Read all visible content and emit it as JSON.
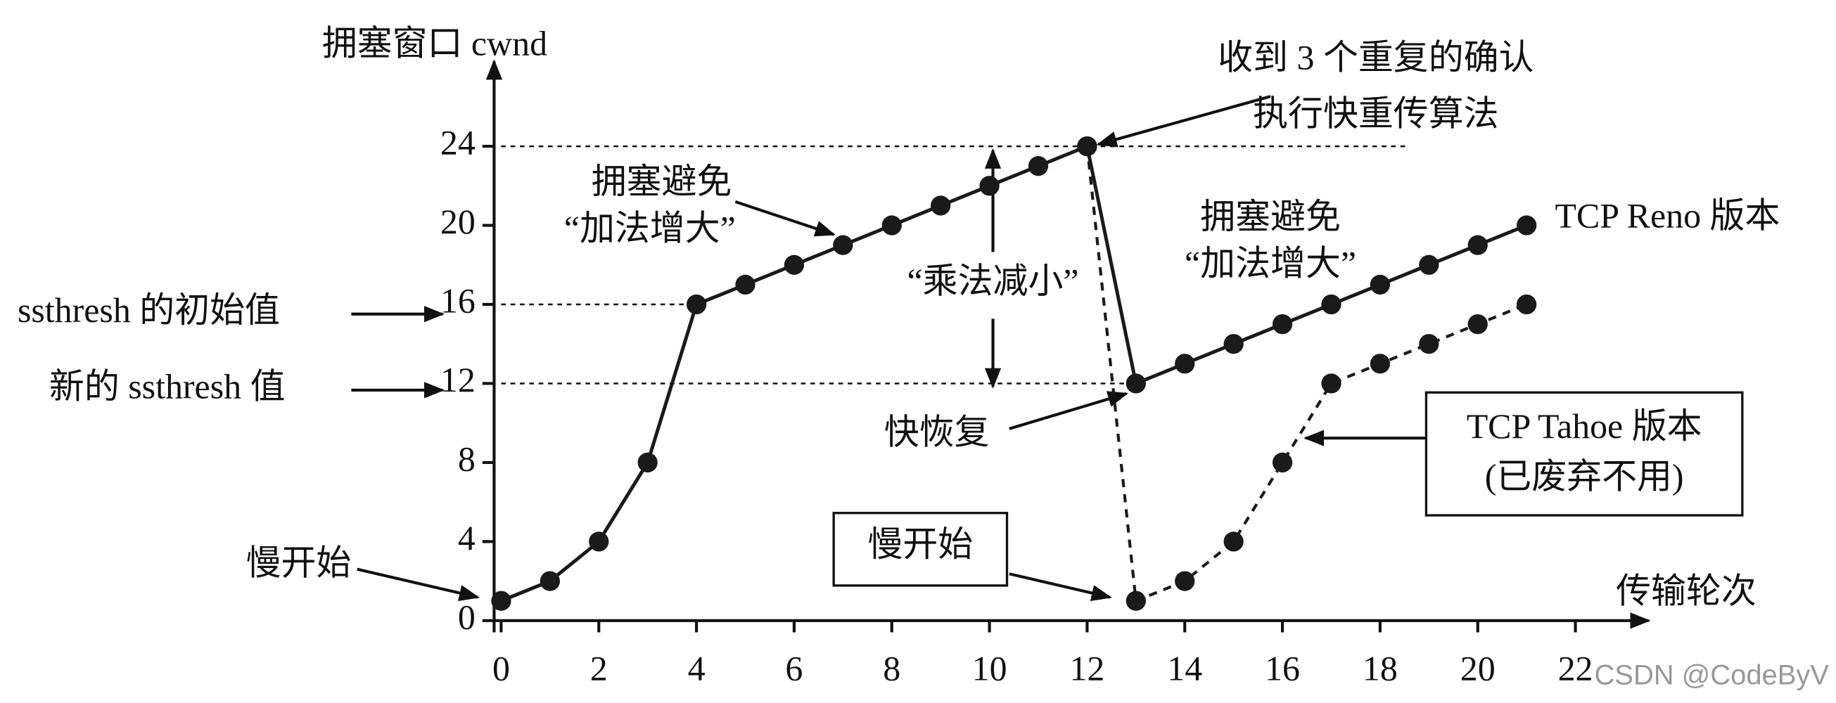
{
  "chart_data": {
    "type": "line",
    "y_label": "拥塞窗口 cwnd",
    "x_label": "传输轮次",
    "xlim": [
      0,
      23.5
    ],
    "ylim": [
      0,
      28.3
    ],
    "xticks": [
      0,
      2,
      4,
      6,
      8,
      10,
      12,
      14,
      16,
      18,
      20,
      22
    ],
    "yticks": [
      0,
      4,
      8,
      12,
      16,
      20,
      24
    ],
    "series": [
      {
        "name": "TCP Reno 版本",
        "color": "#1a1a1a",
        "line_style": "solid",
        "x": [
          0,
          1,
          2,
          3,
          4,
          5,
          6,
          7,
          8,
          9,
          10,
          11,
          12,
          13,
          14,
          15,
          16,
          17,
          18,
          19,
          20,
          21
        ],
        "values": [
          1,
          2,
          4,
          8,
          16,
          17,
          18,
          19,
          20,
          21,
          22,
          23,
          24,
          12,
          13,
          14,
          15,
          16,
          17,
          18,
          19,
          20
        ]
      },
      {
        "name": "TCP Tahoe 版本",
        "color": "#1a1a1a",
        "line_style": "dashed",
        "x": [
          12,
          13,
          14,
          15,
          16,
          17,
          18,
          19,
          20,
          21
        ],
        "values": [
          24,
          1,
          2,
          4,
          8,
          12,
          13,
          14,
          15,
          16
        ]
      }
    ],
    "annotations": [
      "收到 3 个重复的确认",
      "执行快重传算法",
      "拥塞避免",
      "“加法增大”",
      "“乘法减小”",
      "拥塞避免",
      "“加法增大”",
      "ssthresh 的初始值",
      "新的 ssthresh 值",
      "快恢复",
      "慢开始",
      "慢开始",
      "(已废弃不用)"
    ],
    "watermark": "CSDN @CodeByV"
  }
}
